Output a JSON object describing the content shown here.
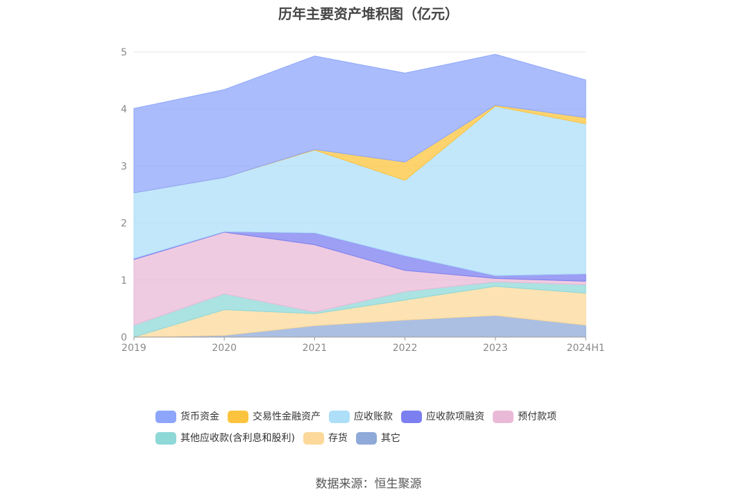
{
  "chart_data": {
    "type": "area",
    "title": "历年主要资产堆积图（亿元）",
    "source": "数据来源：恒生聚源",
    "categories": [
      "2019",
      "2020",
      "2021",
      "2022",
      "2023",
      "2024H1"
    ],
    "y_ticks": [
      "0",
      "1",
      "2",
      "3",
      "4",
      "5"
    ],
    "ylim": [
      0,
      5
    ],
    "stacked": true,
    "grid": true,
    "legend_position": "bottom",
    "series": [
      {
        "name": "其它",
        "color": "#8fa9d8",
        "values": [
          0.0,
          0.03,
          0.2,
          0.3,
          0.38,
          0.21
        ]
      },
      {
        "name": "存货",
        "color": "#fcd99a",
        "values": [
          0.0,
          0.45,
          0.21,
          0.35,
          0.51,
          0.56
        ]
      },
      {
        "name": "其他应收款(含利息和股利)",
        "color": "#8fd8d8",
        "values": [
          0.21,
          0.28,
          0.03,
          0.15,
          0.08,
          0.15
        ]
      },
      {
        "name": "预付款项",
        "color": "#eab9d7",
        "values": [
          1.15,
          1.08,
          1.18,
          0.37,
          0.06,
          0.06
        ]
      },
      {
        "name": "应收款项融资",
        "color": "#7b7ff0",
        "values": [
          0.02,
          0.01,
          0.21,
          0.26,
          0.05,
          0.13
        ]
      },
      {
        "name": "应收账款",
        "color": "#addff9",
        "values": [
          1.15,
          0.95,
          1.45,
          1.32,
          2.97,
          2.63
        ]
      },
      {
        "name": "交易性金融资产",
        "color": "#fcc43e",
        "values": [
          0.0,
          0.0,
          0.01,
          0.32,
          0.02,
          0.11
        ]
      },
      {
        "name": "货币资金",
        "color": "#8da6fb",
        "values": [
          1.48,
          1.54,
          1.64,
          1.56,
          0.89,
          0.66
        ]
      }
    ]
  },
  "legend": [
    {
      "label": "货币资金",
      "color": "#8da6fb"
    },
    {
      "label": "交易性金融资产",
      "color": "#fcc43e"
    },
    {
      "label": "应收账款",
      "color": "#addff9"
    },
    {
      "label": "应收款项融资",
      "color": "#7b7ff0"
    },
    {
      "label": "预付款项",
      "color": "#eab9d7"
    },
    {
      "label": "其他应收款(含利息和股利)",
      "color": "#8fd8d8"
    },
    {
      "label": "存货",
      "color": "#fcd99a"
    },
    {
      "label": "其它",
      "color": "#8fa9d8"
    }
  ]
}
